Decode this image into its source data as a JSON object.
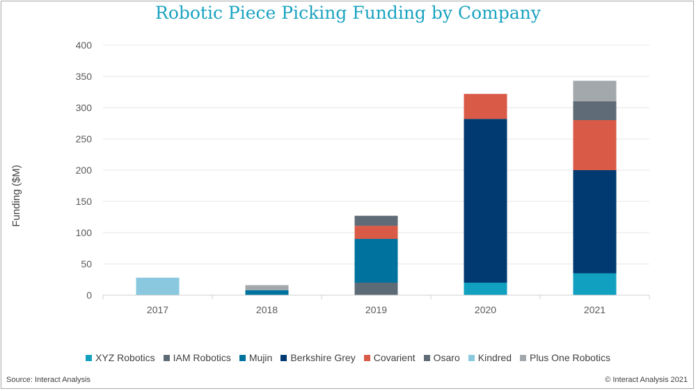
{
  "chart_data": {
    "type": "bar",
    "stacked": true,
    "title": "Robotic Piece Picking Funding by Company",
    "ylabel": "Funding ($M)",
    "xlabel": "",
    "ylim": [
      0,
      400
    ],
    "yticks": [
      0,
      50,
      100,
      150,
      200,
      250,
      300,
      350,
      400
    ],
    "categories": [
      "2017",
      "2018",
      "2019",
      "2020",
      "2021"
    ],
    "grid": "horizontal",
    "legend_position": "bottom",
    "series": [
      {
        "name": "XYZ Robotics",
        "color": "#12a0c0",
        "values": [
          0,
          0,
          0,
          20,
          35
        ]
      },
      {
        "name": "IAM Robotics",
        "color": "#5d6b77",
        "values": [
          0,
          0,
          20,
          0,
          0
        ]
      },
      {
        "name": "Mujin",
        "color": "#00729e",
        "values": [
          0,
          8,
          70,
          0,
          0
        ]
      },
      {
        "name": "Berkshire Grey",
        "color": "#003a70",
        "values": [
          0,
          0,
          0,
          262,
          165
        ]
      },
      {
        "name": "Covarient",
        "color": "#d95a47",
        "values": [
          0,
          0,
          21,
          40,
          80
        ]
      },
      {
        "name": "Osaro",
        "color": "#5f6b76",
        "values": [
          0,
          0,
          16,
          0,
          30
        ]
      },
      {
        "name": "Kindred",
        "color": "#89c8de",
        "values": [
          28,
          0,
          0,
          0,
          0
        ]
      },
      {
        "name": "Plus One Robotics",
        "color": "#a3a8ad",
        "values": [
          0,
          8,
          0,
          0,
          33
        ]
      }
    ]
  },
  "footer": {
    "source": "Source: Interact Analysis",
    "copyright": "© Interact Analysis 2021"
  }
}
